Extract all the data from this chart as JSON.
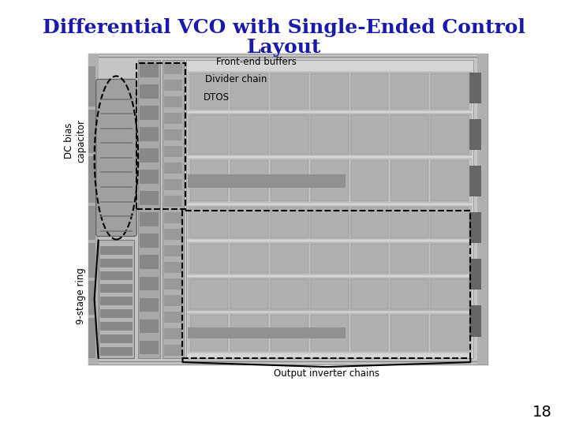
{
  "title_line1": "Differential VCO with Single-Ended Control",
  "title_line2": "Layout",
  "title_color": "#1a1aaa",
  "title_fontsize": 18,
  "subtitle_fontsize": 18,
  "page_number": "18",
  "page_num_fontsize": 14,
  "bg_color": "#ffffff",
  "label_front_end": "Front-end buffers",
  "label_divider": "Divider chain",
  "label_dtos": "DTOS",
  "label_dc_bias": "DC bias\ncapacitor",
  "label_9stage": "9-stage ring",
  "label_output": "Output inverter chains",
  "label_fontsize": 8.5,
  "label_color": "#000000"
}
